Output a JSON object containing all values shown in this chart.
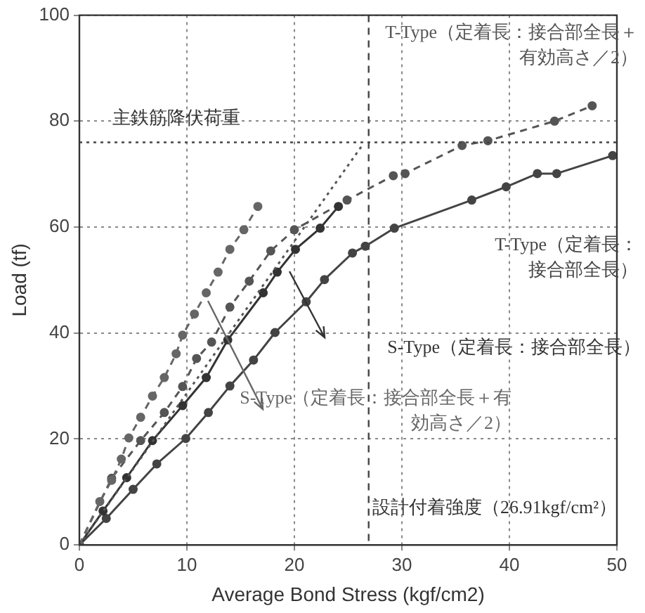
{
  "chart_data": {
    "type": "line",
    "xlabel": "Average Bond Stress (kgf/cm2)",
    "ylabel": "Load (tf)",
    "xlim": [
      0,
      50
    ],
    "xticks": [
      0,
      10,
      20,
      30,
      40,
      50
    ],
    "ylim": [
      0,
      100
    ],
    "yticks": [
      0,
      20,
      40,
      60,
      80,
      100
    ],
    "grid": true,
    "legend": false,
    "marker": "circle",
    "series": [
      {
        "name": "T-Type（定着長：接合部全長＋有効高さ／2）",
        "color": "#555555",
        "line_style": "dashed",
        "x": [
          0,
          3.0,
          5.7,
          7.9,
          9.6,
          10.9,
          12.3,
          14.0,
          15.8,
          17.8,
          20.0,
          24.9,
          29.2,
          30.3,
          35.6,
          38.0,
          44.2,
          47.7
        ],
        "values": [
          0,
          12.6,
          19.7,
          25.0,
          29.9,
          35.2,
          38.3,
          44.9,
          49.8,
          55.5,
          59.5,
          65.1,
          69.7,
          70.1,
          75.4,
          76.3,
          80.0,
          82.9
        ]
      },
      {
        "name": "T-Type（定着長：接合部全長）",
        "color": "#444444",
        "line_style": "solid",
        "x": [
          0,
          2.5,
          5,
          7.2,
          9.9,
          12,
          14,
          16.2,
          18.2,
          21.1,
          22.8,
          25.4,
          26.6,
          29.3,
          36.5,
          39.7,
          42.6,
          44.4,
          49.6
        ],
        "values": [
          0,
          5,
          10.5,
          15.3,
          20.1,
          25,
          30,
          34.9,
          40.1,
          45.9,
          50.1,
          55.1,
          56.4,
          59.8,
          65.1,
          67.6,
          70.1,
          70.1,
          73.5
        ]
      },
      {
        "name": "S-Type（定着長：接合部全長）",
        "color": "#333333",
        "line_style": "solid",
        "x": [
          0,
          2.2,
          4.4,
          6.8,
          9.6,
          11.8,
          13.8,
          17.1,
          18.4,
          20.1,
          22.4,
          24.1
        ],
        "values": [
          0,
          6.4,
          12.7,
          19.7,
          26.3,
          31.6,
          38.7,
          47.6,
          51.5,
          55.8,
          59.8,
          63.9
        ]
      },
      {
        "name": "S-Type（定着長：接合部全長＋有効高さ／2）",
        "color": "#666666",
        "line_style": "dashed",
        "x": [
          0,
          1.9,
          3.0,
          3.9,
          4.6,
          5.7,
          6.8,
          7.9,
          9.0,
          9.6,
          10.7,
          11.8,
          12.9,
          14.0,
          15.3,
          16.6
        ],
        "values": [
          0,
          8.2,
          12.2,
          16.2,
          20.2,
          24.1,
          28.1,
          31.6,
          36.1,
          39.6,
          43.6,
          47.6,
          51.5,
          55.8,
          59.5,
          63.9
        ]
      },
      {
        "color": "#555555",
        "line_style": "dotted",
        "marker": "none",
        "x": [
          0,
          26.3
        ],
        "values": [
          0,
          75.4
        ]
      }
    ],
    "ref_lines": [
      {
        "axis": "y",
        "value": 76,
        "label": "主鉄筋降伏荷重",
        "color": "#444444",
        "line_style": "dotted"
      },
      {
        "axis": "x",
        "value": 26.91,
        "label": "設計付着強度（26.91kgf/cm²）",
        "color": "#444444",
        "line_style": "dashed"
      }
    ]
  }
}
